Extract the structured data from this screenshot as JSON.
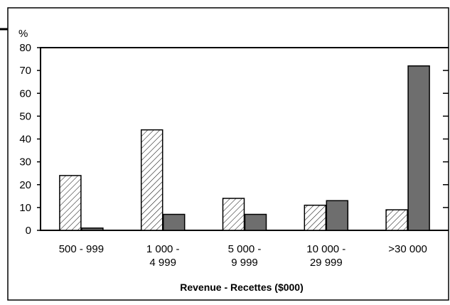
{
  "chart_data": {
    "type": "bar",
    "title": "",
    "ylabel": "%",
    "xlabel": "Revenue - Recettes ($000)",
    "ylim": [
      0,
      80
    ],
    "yticks": [
      0,
      10,
      20,
      30,
      40,
      50,
      60,
      70,
      80
    ],
    "grid": false,
    "legend": "none",
    "categories": [
      [
        "500 - 999"
      ],
      [
        "1 000 -",
        "4 999"
      ],
      [
        "5 000 -",
        "9 999"
      ],
      [
        "10 000 -",
        "29 999"
      ],
      [
        ">30 000"
      ]
    ],
    "series": [
      {
        "values": [
          24,
          44,
          14,
          11,
          9
        ],
        "pattern": "hatched",
        "color": "#ffffff"
      },
      {
        "values": [
          1,
          7,
          7,
          13,
          72
        ],
        "pattern": "solid",
        "color": "#6e6e6e"
      }
    ]
  }
}
